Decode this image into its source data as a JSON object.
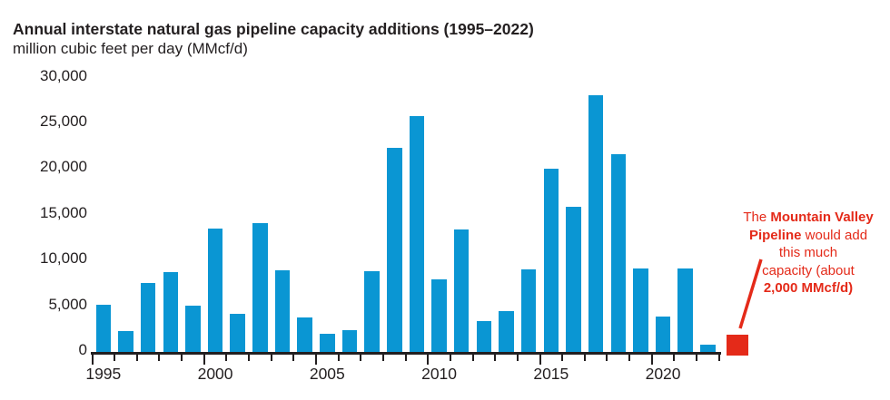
{
  "header": {
    "title": "Annual interstate natural gas pipeline capacity additions (1995–2022)",
    "subtitle": "million cubic feet per day (MMcf/d)"
  },
  "colors": {
    "bar_blue": "#0a96d3",
    "highlight_red": "#e42a19",
    "axis_black": "#231f20",
    "text_dark": "#231f20"
  },
  "chart_data": {
    "type": "bar",
    "title": "Annual interstate natural gas pipeline capacity additions (1995–2022)",
    "ylabel": "million cubic feet per day (MMcf/d)",
    "categories": [
      1995,
      1996,
      1997,
      1998,
      1999,
      2000,
      2001,
      2002,
      2003,
      2004,
      2005,
      2006,
      2007,
      2008,
      2009,
      2010,
      2011,
      2012,
      2013,
      2014,
      2015,
      2016,
      2017,
      2018,
      2019,
      2020,
      2021,
      2022
    ],
    "values": [
      5300,
      2400,
      7600,
      8800,
      5200,
      13600,
      4300,
      14200,
      9000,
      3900,
      2100,
      2500,
      8900,
      22400,
      25900,
      8000,
      13500,
      3500,
      4600,
      9100,
      20100,
      16000,
      28200,
      21700,
      9200,
      4000,
      9200,
      900
    ],
    "ylim": [
      0,
      30000
    ],
    "ytick_interval": 5000,
    "ytick_labels": [
      "0",
      "5,000",
      "10,000",
      "15,000",
      "20,000",
      "25,000",
      "30,000"
    ],
    "xtick_years": [
      1995,
      2000,
      2005,
      2010,
      2015,
      2020
    ],
    "grid": false,
    "legend": null,
    "highlight_bar": {
      "label": "Mountain Valley Pipeline",
      "value": 2000,
      "position": "after-2022"
    }
  },
  "annotation": {
    "color": "#e42a19",
    "lines": [
      {
        "segments": [
          {
            "text": "The ",
            "bold": false
          },
          {
            "text": "Mountain Valley",
            "bold": true
          }
        ]
      },
      {
        "segments": [
          {
            "text": "Pipeline",
            "bold": true
          },
          {
            "text": " would add",
            "bold": false
          }
        ]
      },
      {
        "segments": [
          {
            "text": "this much",
            "bold": false
          }
        ]
      },
      {
        "segments": [
          {
            "text": "capacity (about",
            "bold": false
          }
        ]
      },
      {
        "segments": [
          {
            "text": "2,000 MMcf/d)",
            "bold": true
          }
        ]
      }
    ]
  }
}
